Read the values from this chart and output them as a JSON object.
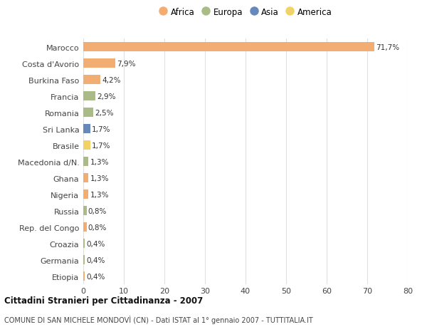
{
  "categories": [
    "Marocco",
    "Costa d'Avorio",
    "Burkina Faso",
    "Francia",
    "Romania",
    "Sri Lanka",
    "Brasile",
    "Macedonia d/N.",
    "Ghana",
    "Nigeria",
    "Russia",
    "Rep. del Congo",
    "Croazia",
    "Germania",
    "Etiopia"
  ],
  "values": [
    71.7,
    7.9,
    4.2,
    2.9,
    2.5,
    1.7,
    1.7,
    1.3,
    1.3,
    1.3,
    0.8,
    0.8,
    0.4,
    0.4,
    0.4
  ],
  "labels": [
    "71,7%",
    "7,9%",
    "4,2%",
    "2,9%",
    "2,5%",
    "1,7%",
    "1,7%",
    "1,3%",
    "1,3%",
    "1,3%",
    "0,8%",
    "0,8%",
    "0,4%",
    "0,4%",
    "0,4%"
  ],
  "continents": [
    "Africa",
    "Africa",
    "Africa",
    "Europa",
    "Europa",
    "Asia",
    "America",
    "Europa",
    "Africa",
    "Africa",
    "Europa",
    "Africa",
    "Europa",
    "Europa",
    "Africa"
  ],
  "colors": {
    "Africa": "#F2AE72",
    "Europa": "#AABB88",
    "Asia": "#6688BB",
    "America": "#F2D266"
  },
  "xlim": [
    0,
    80
  ],
  "xticks": [
    0,
    10,
    20,
    30,
    40,
    50,
    60,
    70,
    80
  ],
  "title": "Cittadini Stranieri per Cittadinanza - 2007",
  "subtitle": "COMUNE DI SAN MICHELE MONDOVÌ (CN) - Dati ISTAT al 1° gennaio 2007 - TUTTITALIA.IT",
  "background_color": "#ffffff",
  "grid_color": "#e0e0e0",
  "bar_height": 0.55,
  "legend_order": [
    "Africa",
    "Europa",
    "Asia",
    "America"
  ]
}
